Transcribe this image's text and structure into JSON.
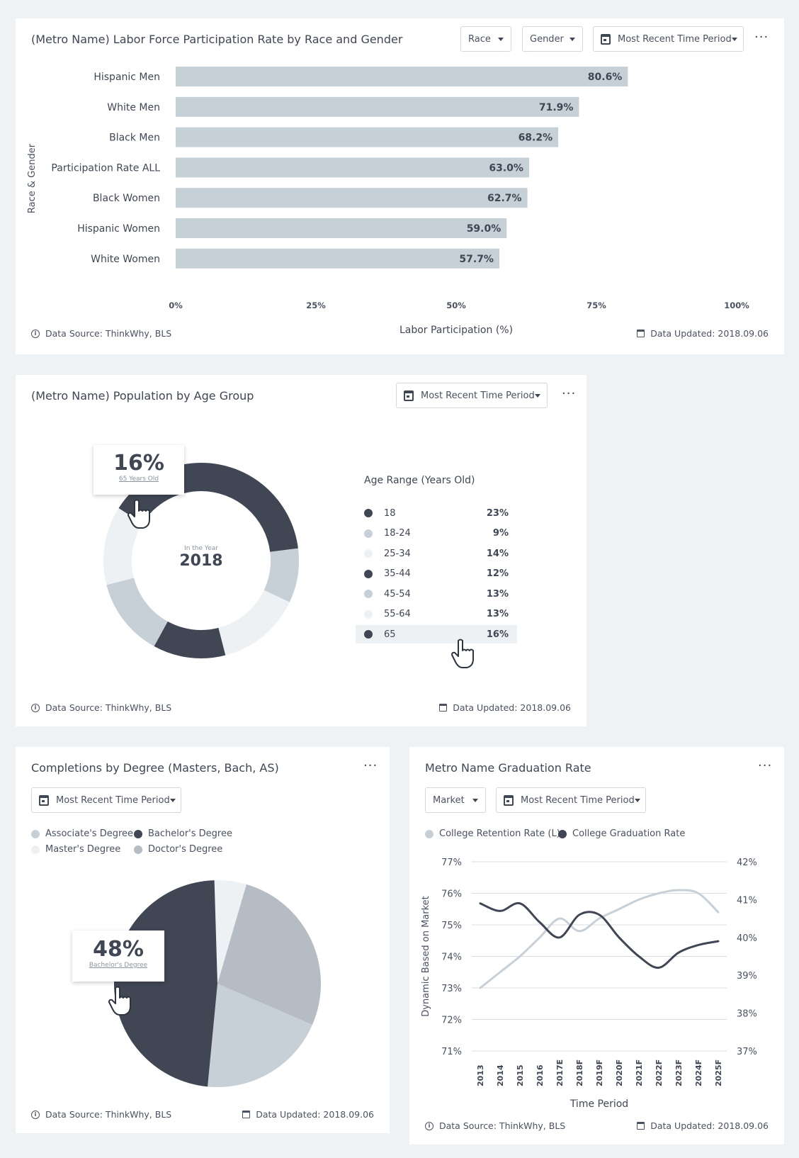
{
  "colors": {
    "dark": "#404654",
    "mid": "#b5bcc3",
    "light": "#c7d0d7",
    "pale": "#eef1f3",
    "bar": "#c6d0d7"
  },
  "footer": {
    "source": "Data Source: ThinkWhy, BLS",
    "updated": "Data Updated: 2018.09.06"
  },
  "labor": {
    "title": "(Metro Name) Labor Force Participation Rate by Race and Gender",
    "filters": [
      "Race",
      "Gender",
      "Most Recent Time Period"
    ],
    "more": "···",
    "chart_data": {
      "type": "bar",
      "orientation": "horizontal",
      "categories": [
        "Hispanic Men",
        "White Men",
        "Black Men",
        "Participation Rate ALL",
        "Black Women",
        "Hispanic Women",
        "White Women"
      ],
      "values": [
        80.6,
        71.9,
        68.2,
        63.0,
        62.7,
        59.0,
        57.7
      ],
      "data_labels": [
        "80.6%",
        "71.9%",
        "68.2%",
        "63.0%",
        "62.7%",
        "59.0%",
        "57.7%"
      ],
      "ticks": [
        "0%",
        "25%",
        "50%",
        "75%",
        "100%"
      ],
      "xlim": [
        0,
        100
      ],
      "xlabel": "Labor Participation (%)",
      "ylabel": "Race & Gender"
    }
  },
  "age": {
    "title": "(Metro Name) Population by Age Group",
    "filter": "Most Recent Time Period",
    "more": "···",
    "center_label": "In the Year",
    "center_value": "2018",
    "tooltip": {
      "value": "16%",
      "label": "65 Years Old"
    },
    "legend_title": "Age Range (Years Old)",
    "chart_data": {
      "type": "pie",
      "donut": true,
      "labels": [
        "18",
        "18-24",
        "25-34",
        "35-44",
        "45-54",
        "55-64",
        "65"
      ],
      "values": [
        23,
        9,
        14,
        12,
        13,
        13,
        16
      ],
      "value_labels": [
        "23%",
        "9%",
        "14%",
        "12%",
        "13%",
        "13%",
        "16%"
      ],
      "colors": [
        "#404654",
        "#c7d0d7",
        "#eef1f3",
        "#404654",
        "#c7d0d7",
        "#eef1f3",
        "#404654"
      ]
    }
  },
  "degree": {
    "title": "Completions by Degree (Masters, Bach, AS)",
    "filter": "Most Recent Time Period",
    "more": "···",
    "tooltip": {
      "value": "48%",
      "label": "Bachelor's Degree"
    },
    "chart_data": {
      "type": "pie",
      "labels": [
        "Associate's Degree",
        "Bachelor's Degree",
        "Master's Degree",
        "Doctor's Degree"
      ],
      "values": [
        20,
        48,
        5,
        27
      ],
      "colors": [
        "#c7d0d7",
        "#404654",
        "#eef1f3",
        "#b5bcc3"
      ]
    }
  },
  "grad": {
    "title": "Metro Name Graduation Rate",
    "filters": [
      "Market",
      "Most Recent Time Period"
    ],
    "more": "···",
    "chart_data": {
      "type": "line",
      "x": [
        "2013",
        "2014",
        "2015",
        "2016",
        "2017E",
        "2018F",
        "2019F",
        "2020F",
        "2021F",
        "2022F",
        "2023F",
        "2024F",
        "2025F"
      ],
      "series": [
        {
          "name": "College Retention Rate (L)",
          "color": "#c7d0d7",
          "axis": "left",
          "values": [
            73.0,
            73.5,
            74.0,
            74.6,
            75.2,
            74.8,
            75.2,
            75.5,
            75.8,
            76.0,
            76.1,
            76.0,
            75.4
          ]
        },
        {
          "name": "College Graduation Rate",
          "color": "#404654",
          "axis": "right",
          "values": [
            40.9,
            40.7,
            40.9,
            40.4,
            40.0,
            40.6,
            40.6,
            40.0,
            39.5,
            39.2,
            39.6,
            39.8,
            39.9
          ]
        }
      ],
      "yleft_ticks": [
        "77%",
        "76%",
        "75%",
        "74%",
        "73%",
        "72%",
        "71%"
      ],
      "yleft_lim": [
        71,
        77
      ],
      "yright_ticks": [
        "42%",
        "41%",
        "40%",
        "39%",
        "38%",
        "37%"
      ],
      "yright_lim": [
        37,
        42
      ],
      "xlabel": "Time Period",
      "ylabel": "Dynamic Based on Market",
      "grid": true
    }
  }
}
